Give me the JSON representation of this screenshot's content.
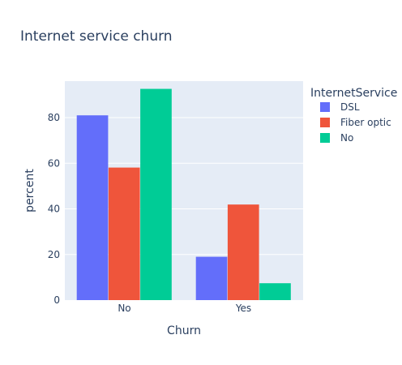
{
  "chart_data": {
    "type": "bar",
    "title": "Internet service churn",
    "xlabel": "Churn",
    "ylabel": "percent",
    "categories": [
      "No",
      "Yes"
    ],
    "ylim": [
      0,
      96
    ],
    "yticks": [
      0,
      20,
      40,
      60,
      80
    ],
    "grid": true,
    "legend_title": "InternetService",
    "legend_position": "right",
    "series": [
      {
        "name": "DSL",
        "color": "#636efa",
        "values": [
          81.0,
          19.0
        ]
      },
      {
        "name": "Fiber optic",
        "color": "#ef553b",
        "values": [
          58.1,
          41.9
        ]
      },
      {
        "name": "No",
        "color": "#00cc96",
        "values": [
          92.6,
          7.4
        ]
      }
    ]
  }
}
